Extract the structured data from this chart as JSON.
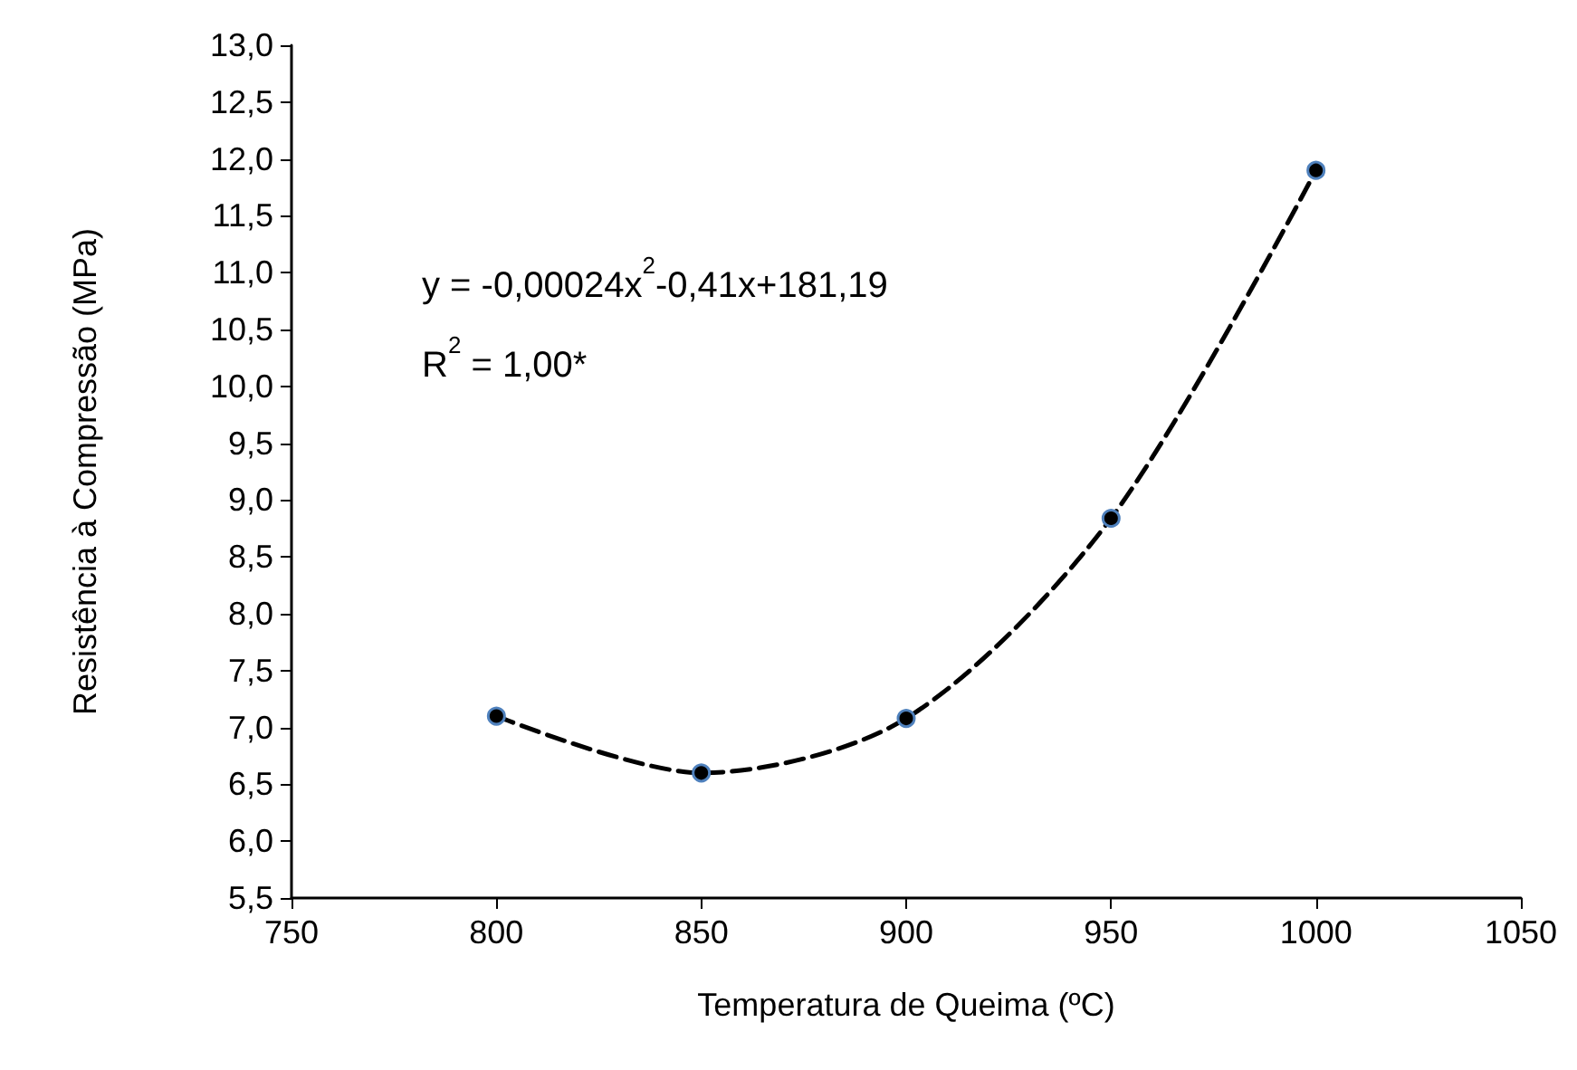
{
  "chart_data": {
    "type": "line",
    "xlabel": "Temperatura de Queima (ºC)",
    "ylabel": "Resistência à Compressão (MPa)",
    "x": [
      800,
      850,
      900,
      950,
      1000
    ],
    "series": [
      {
        "color": "#000000",
        "values": [
          7.1,
          6.6,
          7.08,
          8.84,
          11.9
        ]
      }
    ],
    "marker": "circle",
    "line_style": "dashed",
    "grid": false,
    "xlim": [
      750,
      1050
    ],
    "xticks": [
      750,
      800,
      850,
      900,
      950,
      1000,
      1050
    ],
    "ylim": [
      5.5,
      13
    ],
    "yticks": [
      {
        "value": 5.5,
        "label": "5,5"
      },
      {
        "value": 6,
        "label": "6,0"
      },
      {
        "value": 6.5,
        "label": "6,5"
      },
      {
        "value": 7,
        "label": "7,0"
      },
      {
        "value": 7.5,
        "label": "7,5"
      },
      {
        "value": 8,
        "label": "8,0"
      },
      {
        "value": 8.5,
        "label": "8,5"
      },
      {
        "value": 9,
        "label": "9,0"
      },
      {
        "value": 9.5,
        "label": "9,5"
      },
      {
        "value": 10,
        "label": "10,0"
      },
      {
        "value": 10.5,
        "label": "10,5"
      },
      {
        "value": 11,
        "label": "11,0"
      },
      {
        "value": 11.5,
        "label": "11,5"
      },
      {
        "value": 12,
        "label": "12,0"
      },
      {
        "value": 12.5,
        "label": "12,5"
      },
      {
        "value": 13,
        "label": "13,0"
      }
    ],
    "annotations": [
      "y = -0,00024x$^{2}$-0,41x+181,19",
      "R$^{2}$ = 1,00*"
    ]
  }
}
